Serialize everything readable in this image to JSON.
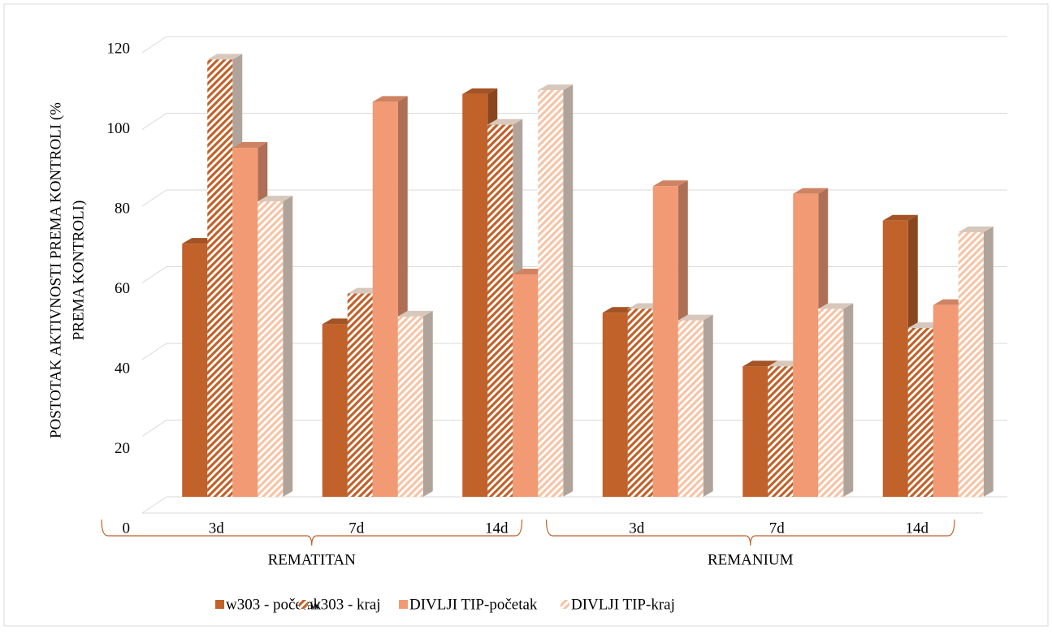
{
  "chart_data": {
    "type": "bar3d",
    "ylabel": [
      "POSTOTAK AKTIVNOSTI PREMA KONTROLI (%",
      "PREMA KONTROLI)"
    ],
    "groups": [
      {
        "name": "REMATITAN",
        "categories": [
          "3d",
          "7d",
          "14d"
        ]
      },
      {
        "name": "REMANIUM",
        "categories": [
          "3d",
          "7d",
          "14d"
        ]
      }
    ],
    "series": [
      {
        "name": "w303 - početak",
        "color": "#c0622a",
        "pattern": "solid",
        "values": [
          66,
          45,
          105,
          48,
          34,
          72
        ]
      },
      {
        "name": "w303 - kraj",
        "color": "#c0622a",
        "pattern": "hatch",
        "values": [
          114,
          53,
          97,
          49,
          34,
          44
        ]
      },
      {
        "name": "DIVLJI TIP-početak",
        "color": "#f29a74",
        "pattern": "solid",
        "values": [
          91,
          103,
          58,
          81,
          79,
          50
        ]
      },
      {
        "name": "DIVLJI TIP-kraj",
        "color": "#f6c4a6",
        "pattern": "hatch",
        "values": [
          77,
          47,
          106,
          46,
          49,
          69
        ]
      }
    ],
    "ylim": [
      0,
      120
    ],
    "yticks": [
      0,
      20,
      40,
      60,
      80,
      100,
      120
    ],
    "grid": true,
    "legend": "bottom"
  }
}
